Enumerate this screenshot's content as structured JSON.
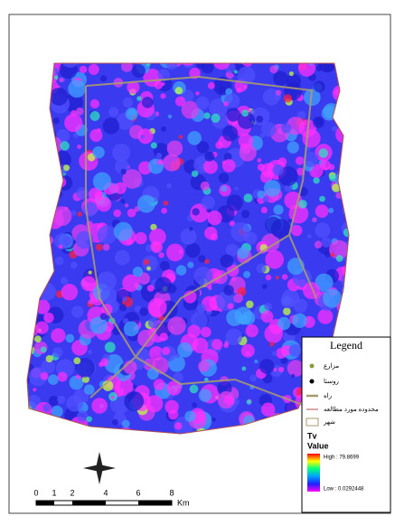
{
  "legend": {
    "title": "Legend",
    "items": [
      "مزارع",
      "روستا",
      "راه",
      "محدوده مورد مطالعه",
      "شهر"
    ],
    "layer": "Tv",
    "field": "Value",
    "high": "High : 79.8699",
    "low": "Low : 0.0292448"
  },
  "scale_bar": {
    "labels": [
      "0",
      "1",
      "2",
      "4",
      "6",
      "8"
    ],
    "unit": "Km"
  }
}
